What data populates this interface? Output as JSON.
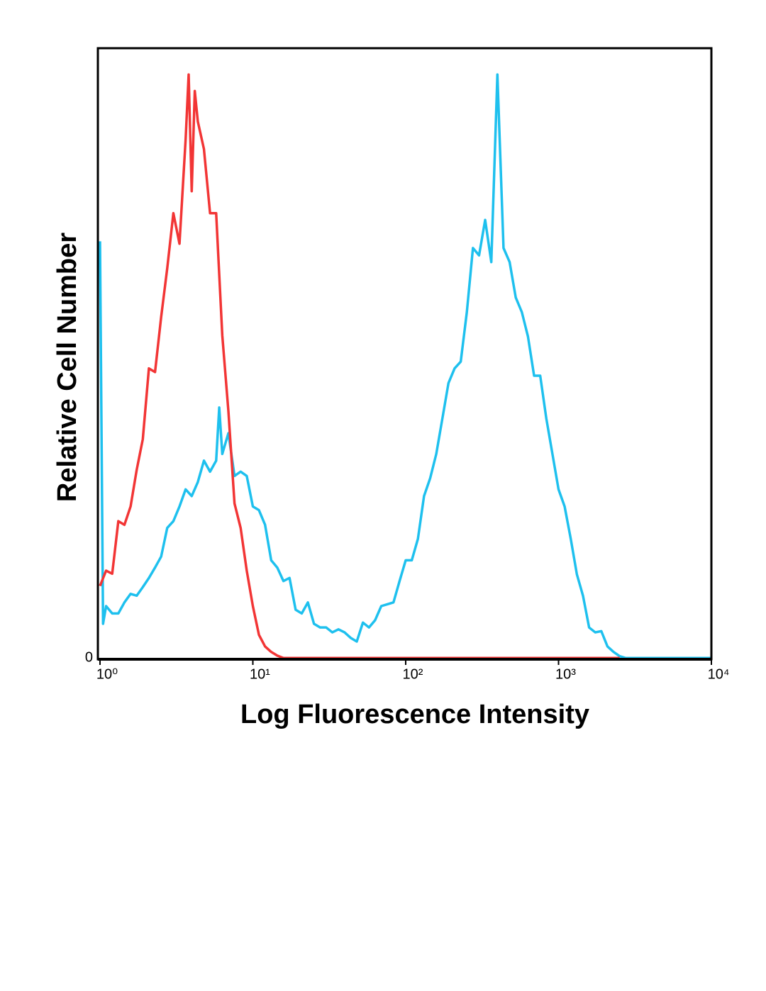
{
  "chart_data": {
    "type": "line",
    "xlabel": "Log Fluorescence Intensity",
    "ylabel": "Relative Cell Number",
    "xscale": "log",
    "xlim": [
      1,
      10000
    ],
    "xticks": [
      {
        "value": 1,
        "label": "10⁰"
      },
      {
        "value": 10,
        "label": "10¹"
      },
      {
        "value": 100,
        "label": "10²"
      },
      {
        "value": 1000,
        "label": "10³"
      },
      {
        "value": 10000,
        "label": "10⁴"
      }
    ],
    "ylim": [
      0,
      100
    ],
    "yticks": [
      0
    ],
    "series": [
      {
        "color": "#1ec0ee",
        "x": [
          1,
          1.047,
          1.096,
          1.202,
          1.318,
          1.445,
          1.585,
          1.738,
          1.905,
          2.089,
          2.291,
          2.512,
          2.754,
          3.02,
          3.311,
          3.631,
          3.981,
          4.365,
          4.786,
          5.248,
          5.754,
          6.026,
          6.31,
          6.918,
          7.586,
          8.318,
          9.12,
          10,
          10.96,
          12.02,
          13.18,
          14.45,
          15.85,
          17.38,
          19.05,
          20.89,
          22.91,
          25.12,
          27.54,
          30.2,
          33.11,
          36.31,
          39.81,
          43.65,
          47.86,
          52.48,
          57.54,
          63.1,
          69.18,
          75.86,
          83.18,
          91.2,
          100,
          109.6,
          120.2,
          131.8,
          144.5,
          158.5,
          173.8,
          190.5,
          208.9,
          229.1,
          251.2,
          275.4,
          302,
          331.1,
          363.1,
          398.1,
          436.5,
          478.6,
          524.8,
          575.4,
          631,
          691.8,
          758.6,
          831.8,
          912,
          1000,
          1096,
          1202,
          1318,
          1445,
          1585,
          1738,
          1905,
          2089,
          2291,
          2512,
          2754,
          10000
        ],
        "values": [
          68.4,
          5.8,
          8.7,
          7.5,
          7.5,
          9.3,
          10.7,
          10.4,
          11.8,
          13.3,
          15,
          16.8,
          21.5,
          22.6,
          25,
          27.8,
          26.7,
          29,
          32.5,
          30.7,
          32.5,
          41.2,
          33.6,
          37,
          30,
          30.7,
          30,
          25,
          24.4,
          22,
          16.2,
          15,
          12.8,
          13.3,
          8.1,
          7.5,
          9.3,
          5.8,
          5.2,
          5.2,
          4.4,
          4.9,
          4.4,
          3.5,
          2.9,
          6,
          5.2,
          6.4,
          8.7,
          9,
          9.3,
          12.8,
          16.2,
          16.2,
          19.7,
          26.7,
          29.6,
          33.6,
          39.4,
          45.2,
          47.6,
          48.7,
          56.8,
          67.3,
          66.1,
          71.9,
          65,
          95.7,
          67.3,
          65,
          59.2,
          56.8,
          52.8,
          46.4,
          46.4,
          39.4,
          33.6,
          27.8,
          25,
          19.7,
          13.9,
          10.4,
          5.2,
          4.4,
          4.6,
          2.1,
          1.2,
          0.5,
          0.2,
          0.2
        ]
      },
      {
        "color": "#f23535",
        "x": [
          1,
          1.096,
          1.202,
          1.318,
          1.445,
          1.585,
          1.738,
          1.905,
          2.089,
          2.291,
          2.512,
          2.754,
          3.02,
          3.311,
          3.631,
          3.802,
          3.981,
          4.169,
          4.365,
          4.786,
          5.248,
          5.754,
          6.31,
          6.918,
          7.586,
          8.318,
          9.12,
          10,
          10.96,
          12.02,
          13.18,
          14.45,
          15.85,
          2512
        ],
        "values": [
          12,
          14.5,
          14,
          22.6,
          22,
          25,
          31,
          36,
          47.6,
          47,
          56,
          64,
          73,
          68,
          85,
          95.7,
          76.6,
          93,
          88,
          83.5,
          73,
          73,
          53,
          40.6,
          25.5,
          21.5,
          14.5,
          8.7,
          4,
          2.1,
          1.2,
          0.6,
          0.2,
          0.2
        ]
      }
    ]
  }
}
